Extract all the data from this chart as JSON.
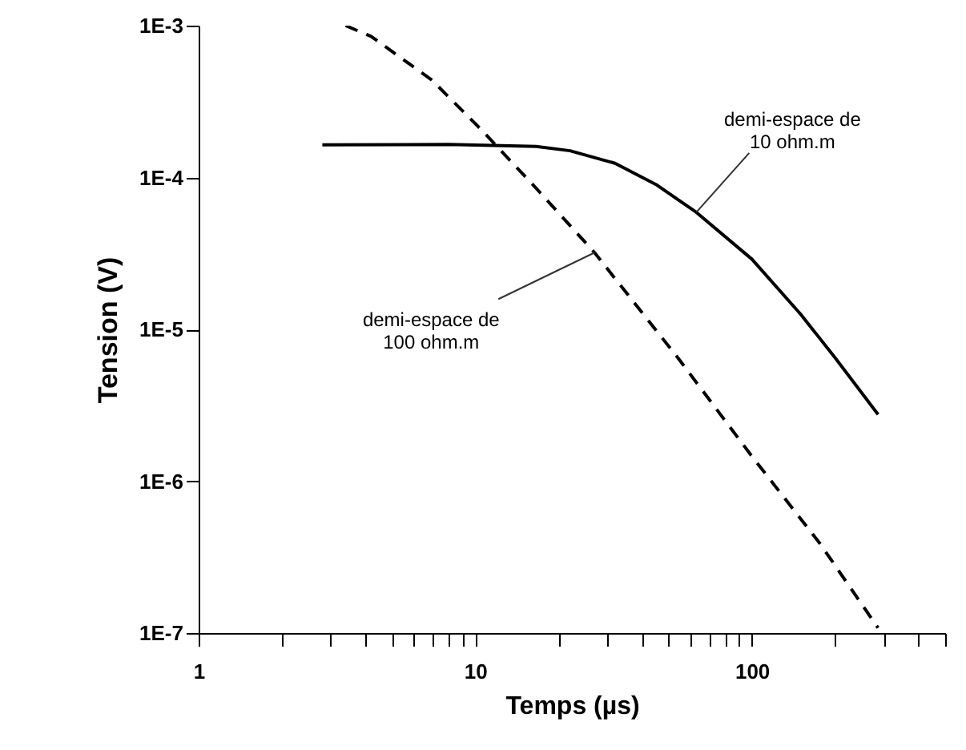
{
  "chart_data": {
    "type": "line",
    "xlabel": "Temps (µs)",
    "ylabel": "Tension (V)",
    "log": "xy",
    "xlim": [
      1,
      500
    ],
    "ylim": [
      1e-07,
      0.001
    ],
    "xticks": [
      1,
      {
        "value": 2,
        "label": null
      },
      {
        "value": 3,
        "label": null
      },
      {
        "value": 4,
        "label": null
      },
      {
        "value": 5,
        "label": null
      },
      {
        "value": 6,
        "label": null
      },
      {
        "value": 7,
        "label": null
      },
      {
        "value": 8,
        "label": null
      },
      {
        "value": 9,
        "label": null
      },
      10,
      {
        "value": 20,
        "label": null
      },
      {
        "value": 30,
        "label": null
      },
      {
        "value": 40,
        "label": null
      },
      {
        "value": 50,
        "label": null
      },
      {
        "value": 60,
        "label": null
      },
      {
        "value": 70,
        "label": null
      },
      {
        "value": 80,
        "label": null
      },
      {
        "value": 90,
        "label": null
      },
      100,
      {
        "value": 200,
        "label": null
      },
      {
        "value": 300,
        "label": null
      },
      {
        "value": 400,
        "label": null
      },
      {
        "value": 500,
        "label": null
      }
    ],
    "yticks": [
      {
        "value": 1e-07,
        "label": "1E-7"
      },
      {
        "value": 1e-06,
        "label": "1E-6"
      },
      {
        "value": 1e-05,
        "label": "1E-5"
      },
      {
        "value": 0.0001,
        "label": "1E-4"
      },
      {
        "value": 0.001,
        "label": "1E-3"
      }
    ],
    "series": [
      {
        "color": "#000000",
        "line_style": "solid",
        "x": [
          2.8,
          8,
          16.6,
          22,
          32,
          45,
          63,
          100,
          150,
          200,
          286
        ],
        "values": [
          0.000164,
          0.000165,
          0.00016,
          0.00015,
          0.000124,
          9e-05,
          5.9e-05,
          2.9e-05,
          1.26e-05,
          6.5e-06,
          2.75e-06
        ]
      },
      {
        "color": "#000000",
        "line_style": "dashed",
        "x": [
          3.4,
          4.2,
          6.95,
          10.5,
          16.6,
          27,
          54,
          100,
          176,
          286
        ],
        "values": [
          0.001,
          0.00085,
          0.00044,
          0.000207,
          8.5e-05,
          3.2e-05,
          6.5e-06,
          1.46e-06,
          3.9e-07,
          1.08e-07
        ]
      }
    ],
    "annotations": [
      {
        "text": "demi-espace de\n10 ohm.m",
        "x": 63,
        "y": 5.9e-05
      },
      {
        "text": "demi-espace de\n100 ohm.m",
        "x": 27,
        "y": 3.2e-05
      }
    ]
  }
}
